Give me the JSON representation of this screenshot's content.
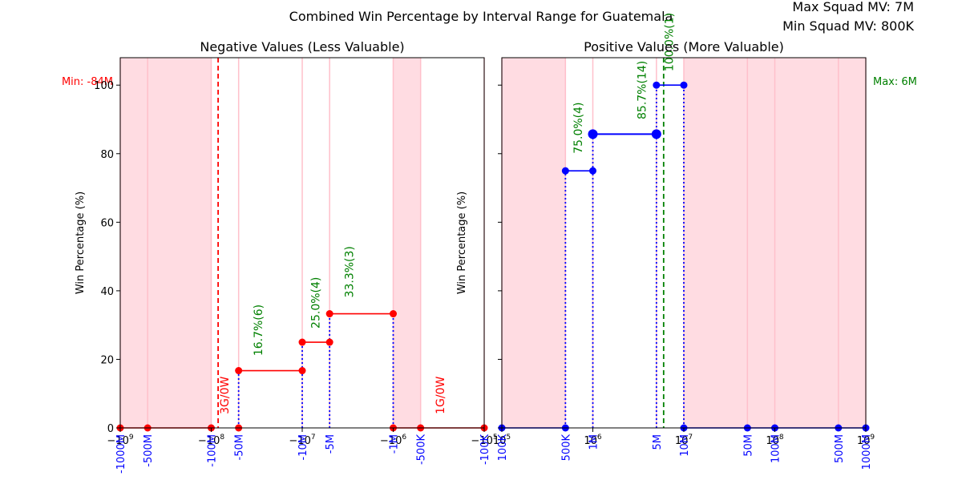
{
  "suptitle": "Combined Win Percentage by Interval Range for Guatemala",
  "max_squad_mv": "Max Squad MV: 7M",
  "min_squad_mv": "Min Squad MV: 800K",
  "colors": {
    "negative_series": "#ff0000",
    "positive_series": "#0000ff",
    "annotation": "#008000",
    "shade": "#ffc0cb",
    "tick_label_blue": "#0000ff"
  },
  "chart_data": [
    {
      "type": "line",
      "panel": "negative",
      "title": "Negative Values (Less Valuable)",
      "ylabel": "Win Percentage (%)",
      "xscale": "symlog-negative",
      "xlim": [
        -1000000000,
        -100000
      ],
      "ylim": [
        0,
        108
      ],
      "y_ticks": [
        0,
        20,
        40,
        60,
        80,
        100
      ],
      "x_major_ticks": [
        {
          "value": -1000000000,
          "label": "−10^9"
        },
        {
          "value": -100000000,
          "label": "−10^8"
        },
        {
          "value": -10000000,
          "label": "−10^7"
        },
        {
          "value": -1000000,
          "label": "−10^6"
        },
        {
          "value": -100000,
          "label": "−10^5"
        }
      ],
      "x_interval_labels": [
        {
          "value": -1000000000,
          "label": "-1000M"
        },
        {
          "value": -500000000,
          "label": "-500M"
        },
        {
          "value": -100000000,
          "label": "-100M"
        },
        {
          "value": -50000000,
          "label": "-50M"
        },
        {
          "value": -10000000,
          "label": "-10M"
        },
        {
          "value": -5000000,
          "label": "-5M"
        },
        {
          "value": -1000000,
          "label": "-1M"
        },
        {
          "value": -500000,
          "label": "-500K"
        },
        {
          "value": -100000,
          "label": "-100K"
        }
      ],
      "shaded_spans": [
        [
          -1000000000,
          -100000000
        ],
        [
          -1000000,
          -500000
        ]
      ],
      "reference_line": {
        "value": -84000000,
        "label": "Min: -84M",
        "style": "dashed",
        "color": "#ff0000"
      },
      "segments": [
        {
          "x": [
            -1000000000,
            -500000000
          ],
          "y": 0
        },
        {
          "x": [
            -500000000,
            -100000000
          ],
          "y": 0
        },
        {
          "x": [
            -50000000,
            -10000000
          ],
          "y": 16.7
        },
        {
          "x": [
            -10000000,
            -5000000
          ],
          "y": 25.0
        },
        {
          "x": [
            -5000000,
            -1000000
          ],
          "y": 33.3
        },
        {
          "x": [
            -1000000,
            -500000
          ],
          "y": 0
        },
        {
          "x": [
            -500000,
            -100000
          ],
          "y": 0
        }
      ],
      "points": [
        {
          "x": -1000000000,
          "y": 0
        },
        {
          "x": -500000000,
          "y": 0
        },
        {
          "x": -100000000,
          "y": 0
        },
        {
          "x": -50000000,
          "y": 0
        },
        {
          "x": -50000000,
          "y": 16.7
        },
        {
          "x": -10000000,
          "y": 16.7
        },
        {
          "x": -10000000,
          "y": 25.0
        },
        {
          "x": -5000000,
          "y": 25.0
        },
        {
          "x": -5000000,
          "y": 33.3
        },
        {
          "x": -1000000,
          "y": 33.3
        },
        {
          "x": -1000000,
          "y": 0
        },
        {
          "x": -500000,
          "y": 0
        },
        {
          "x": -100000,
          "y": 0
        }
      ],
      "vlines": [
        {
          "x": -50000000,
          "y": 16.7
        },
        {
          "x": -10000000,
          "y": 25.0
        },
        {
          "x": -5000000,
          "y": 33.3
        },
        {
          "x": -1000000,
          "y": 33.3
        }
      ],
      "annotations": [
        {
          "x": -30000000,
          "y": 21,
          "text": "16.7%(6)",
          "color": "#008000"
        },
        {
          "x": -7000000,
          "y": 29,
          "text": "25.0%(4)",
          "color": "#008000"
        },
        {
          "x": -3000000,
          "y": 38,
          "text": "33.3%(3)",
          "color": "#008000"
        },
        {
          "x": -70000000,
          "y": 4,
          "text": "3G/0W",
          "color": "#ff0000"
        },
        {
          "x": -300000,
          "y": 4,
          "text": "1G/0W",
          "color": "#ff0000"
        }
      ]
    },
    {
      "type": "line",
      "panel": "positive",
      "title": "Positive Values (More Valuable)",
      "ylabel": "Win Percentage (%)",
      "xscale": "log",
      "xlim": [
        100000,
        1000000000
      ],
      "ylim": [
        0,
        108
      ],
      "y_ticks": [
        0,
        20,
        40,
        60,
        80,
        100
      ],
      "x_major_ticks": [
        {
          "value": 100000,
          "label": "10^5"
        },
        {
          "value": 1000000,
          "label": "10^6"
        },
        {
          "value": 10000000,
          "label": "10^7"
        },
        {
          "value": 100000000,
          "label": "10^8"
        },
        {
          "value": 1000000000,
          "label": "10^9"
        }
      ],
      "x_interval_labels": [
        {
          "value": 100000,
          "label": "100K"
        },
        {
          "value": 500000,
          "label": "500K"
        },
        {
          "value": 1000000,
          "label": "1M"
        },
        {
          "value": 5000000,
          "label": "5M"
        },
        {
          "value": 10000000,
          "label": "10M"
        },
        {
          "value": 50000000,
          "label": "50M"
        },
        {
          "value": 100000000,
          "label": "100M"
        },
        {
          "value": 500000000,
          "label": "500M"
        },
        {
          "value": 1000000000,
          "label": "1000M"
        }
      ],
      "shaded_spans": [
        [
          100000,
          500000
        ],
        [
          10000000,
          1000000000
        ]
      ],
      "reference_line": {
        "value": 6000000,
        "label": "Max: 6M",
        "style": "dashed",
        "color": "#008000"
      },
      "segments": [
        {
          "x": [
            100000,
            500000
          ],
          "y": 0
        },
        {
          "x": [
            500000,
            1000000
          ],
          "y": 75.0
        },
        {
          "x": [
            1000000,
            5000000
          ],
          "y": 85.7
        },
        {
          "x": [
            5000000,
            10000000
          ],
          "y": 100.0
        },
        {
          "x": [
            10000000,
            50000000
          ],
          "y": 0
        },
        {
          "x": [
            50000000,
            100000000
          ],
          "y": 0
        },
        {
          "x": [
            100000000,
            500000000
          ],
          "y": 0
        },
        {
          "x": [
            500000000,
            1000000000
          ],
          "y": 0
        }
      ],
      "points": [
        {
          "x": 100000,
          "y": 0
        },
        {
          "x": 500000,
          "y": 0
        },
        {
          "x": 500000,
          "y": 75.0
        },
        {
          "x": 1000000,
          "y": 75.0
        },
        {
          "x": 1000000,
          "y": 85.7,
          "large": true
        },
        {
          "x": 5000000,
          "y": 85.7,
          "large": true
        },
        {
          "x": 5000000,
          "y": 100.0
        },
        {
          "x": 10000000,
          "y": 100.0
        },
        {
          "x": 10000000,
          "y": 0
        },
        {
          "x": 50000000,
          "y": 0
        },
        {
          "x": 100000000,
          "y": 0
        },
        {
          "x": 500000000,
          "y": 0
        },
        {
          "x": 1000000000,
          "y": 0
        }
      ],
      "vlines": [
        {
          "x": 500000,
          "y": 75.0
        },
        {
          "x": 1000000,
          "y": 85.7
        },
        {
          "x": 5000000,
          "y": 100.0
        },
        {
          "x": 10000000,
          "y": 100.0
        }
      ],
      "annotations": [
        {
          "x": 700000,
          "y": 80,
          "text": "75.0%(4)",
          "color": "#008000"
        },
        {
          "x": 3500000,
          "y": 90,
          "text": "85.7%(14)",
          "color": "#008000"
        },
        {
          "x": 7000000,
          "y": 104,
          "text": "100.0%(1)",
          "color": "#008000"
        }
      ]
    }
  ]
}
